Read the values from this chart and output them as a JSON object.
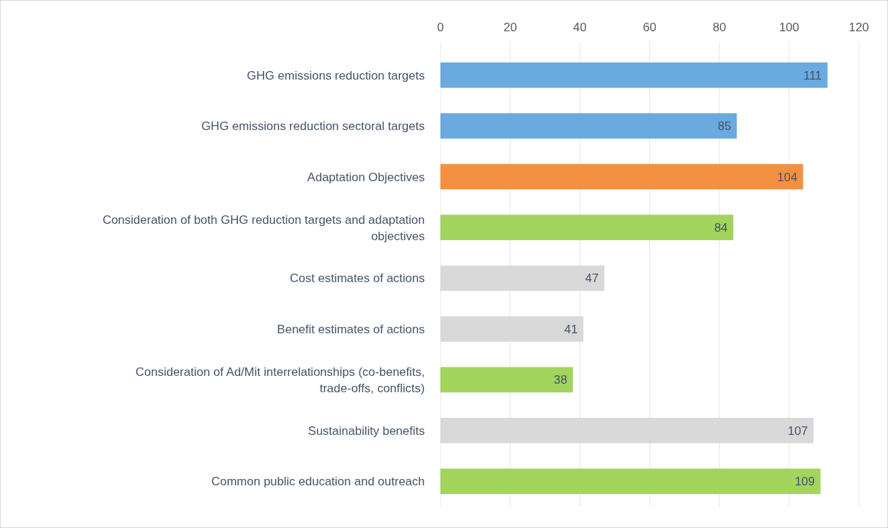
{
  "chart_data": {
    "type": "bar",
    "orientation": "horizontal",
    "categories": [
      "GHG emissions reduction targets",
      "GHG emissions reduction sectoral targets",
      "Adaptation Objectives",
      "Consideration of both GHG reduction targets and adaptation objectives",
      "Cost estimates of actions",
      "Benefit estimates of actions",
      "Consideration of Ad/Mit interrelationships (co-benefits, trade-offs, conflicts)",
      "Sustainability benefits",
      "Common public education and outreach"
    ],
    "values": [
      111,
      85,
      104,
      84,
      47,
      41,
      38,
      107,
      109
    ],
    "colors": [
      "#6aaade",
      "#6aaade",
      "#f39140",
      "#a2d45e",
      "#d9d9d9",
      "#d9d9d9",
      "#a2d45e",
      "#d9d9d9",
      "#a2d45e"
    ],
    "xlim": [
      0,
      120
    ],
    "xticks": [
      0,
      20,
      40,
      60,
      80,
      100,
      120
    ],
    "grid": "x",
    "data_labels": true
  }
}
